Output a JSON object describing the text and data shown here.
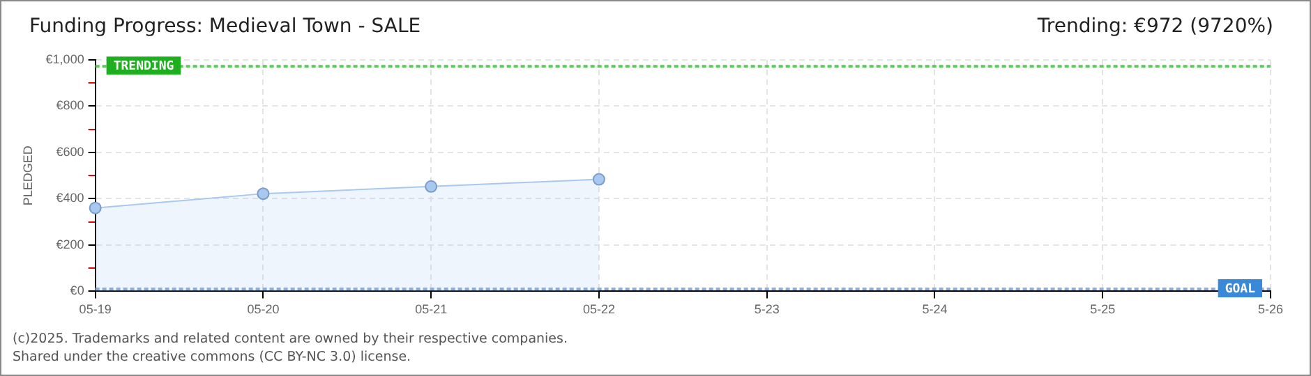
{
  "chart_data": {
    "type": "area",
    "title": "Funding Progress: Medieval Town - SALE",
    "subtitle": "Trending: €972 (9720%)",
    "ylabel": "PLEDGED",
    "categories": [
      "05-19",
      "05-20",
      "05-21",
      "05-22",
      "5-23",
      "5-24",
      "5-25",
      "5-26"
    ],
    "series": [
      {
        "color": "#a8c8f0",
        "values": [
          360,
          422,
          453,
          484,
          null,
          null,
          null,
          null
        ]
      }
    ],
    "ylim": [
      0,
      1000
    ],
    "yticks": [
      {
        "value": 0,
        "label": "€0"
      },
      {
        "value": 100,
        "label": null
      },
      {
        "value": 200,
        "label": "€200"
      },
      {
        "value": 300,
        "label": null
      },
      {
        "value": 400,
        "label": "€400"
      },
      {
        "value": 500,
        "label": null
      },
      {
        "value": 600,
        "label": "€600"
      },
      {
        "value": 700,
        "label": null
      },
      {
        "value": 800,
        "label": "€800"
      },
      {
        "value": 900,
        "label": null
      },
      {
        "value": 1000,
        "label": "€1,000"
      }
    ],
    "grid": true,
    "marker": "circle",
    "legend": false,
    "ref_lines": [
      {
        "axis": "y",
        "value": 972,
        "label": "TRENDING",
        "color": "#5cc85c",
        "line_style": "dotted"
      },
      {
        "axis": "y",
        "value": 10,
        "label": "GOAL",
        "color": "#8ab0e0",
        "line_style": "dotted"
      }
    ],
    "annotations": [
      "(c)2025. Trademarks and related content are owned by their respective companies.",
      "Shared under the creative commons (CC BY-NC 3.0) license."
    ]
  }
}
